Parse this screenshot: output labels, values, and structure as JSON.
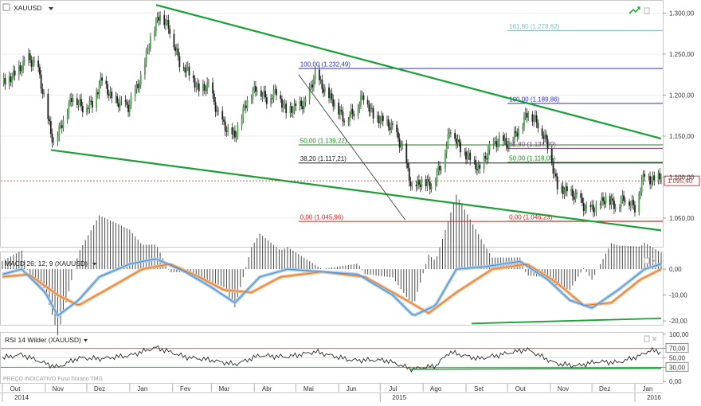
{
  "chart_data": [
    {
      "type": "candlestick",
      "title": "XAUUSD",
      "symbol": "XAUUSD",
      "ylim": [
        1.015,
        1.315
      ],
      "y_ticks": [
        "1.300,00",
        "1.250,00",
        "1.200,00",
        "1.150,00",
        "1.100,00",
        "1.050,00"
      ],
      "y_tick_values": [
        1.3,
        1.25,
        1.2,
        1.15,
        1.1,
        1.05
      ],
      "x_range": [
        "2014-10-01",
        "2016-01-20"
      ],
      "month_ticks": [
        {
          "date": "2014-10-01",
          "label": "Out"
        },
        {
          "date": "2014-11-01",
          "label": "Nov"
        },
        {
          "date": "2014-12-01",
          "label": "Dez"
        },
        {
          "date": "2015-01-01",
          "label": "Jan"
        },
        {
          "date": "2015-02-01",
          "label": "Fev"
        },
        {
          "date": "2015-03-01",
          "label": "Mar"
        },
        {
          "date": "2015-04-01",
          "label": "Abr"
        },
        {
          "date": "2015-05-01",
          "label": "Mai"
        },
        {
          "date": "2015-06-01",
          "label": "Jun"
        },
        {
          "date": "2015-07-01",
          "label": "Jul"
        },
        {
          "date": "2015-08-01",
          "label": "Ago"
        },
        {
          "date": "2015-09-01",
          "label": "Set"
        },
        {
          "date": "2015-10-01",
          "label": "Out"
        },
        {
          "date": "2015-11-01",
          "label": "Nov"
        },
        {
          "date": "2015-12-01",
          "label": "Dez"
        },
        {
          "date": "2016-01-01",
          "label": "Jan"
        }
      ],
      "year_labels": [
        {
          "date": "2014-10-01",
          "label": "2014"
        },
        {
          "date": "2015-07-01",
          "label": "2015"
        },
        {
          "date": "2016-01-01",
          "label": "2016"
        }
      ],
      "price_path": [
        [
          "2014-10-01",
          1.215
        ],
        [
          "2014-10-10",
          1.225
        ],
        [
          "2014-10-20",
          1.245
        ],
        [
          "2014-10-27",
          1.23
        ],
        [
          "2014-11-03",
          1.17
        ],
        [
          "2014-11-07",
          1.14
        ],
        [
          "2014-11-14",
          1.17
        ],
        [
          "2014-11-21",
          1.2
        ],
        [
          "2014-11-28",
          1.185
        ],
        [
          "2014-12-05",
          1.19
        ],
        [
          "2014-12-12",
          1.22
        ],
        [
          "2014-12-19",
          1.195
        ],
        [
          "2014-12-31",
          1.185
        ],
        [
          "2015-01-09",
          1.22
        ],
        [
          "2015-01-16",
          1.27
        ],
        [
          "2015-01-23",
          1.3
        ],
        [
          "2015-01-30",
          1.28
        ],
        [
          "2015-02-06",
          1.24
        ],
        [
          "2015-02-13",
          1.228
        ],
        [
          "2015-02-20",
          1.205
        ],
        [
          "2015-02-27",
          1.212
        ],
        [
          "2015-03-06",
          1.175
        ],
        [
          "2015-03-13",
          1.155
        ],
        [
          "2015-03-18",
          1.15
        ],
        [
          "2015-03-27",
          1.195
        ],
        [
          "2015-04-03",
          1.21
        ],
        [
          "2015-04-10",
          1.195
        ],
        [
          "2015-04-17",
          1.205
        ],
        [
          "2015-04-24",
          1.18
        ],
        [
          "2015-05-01",
          1.185
        ],
        [
          "2015-05-08",
          1.19
        ],
        [
          "2015-05-15",
          1.225
        ],
        [
          "2015-05-22",
          1.205
        ],
        [
          "2015-05-29",
          1.19
        ],
        [
          "2015-06-05",
          1.17
        ],
        [
          "2015-06-12",
          1.18
        ],
        [
          "2015-06-19",
          1.2
        ],
        [
          "2015-06-26",
          1.175
        ],
        [
          "2015-07-03",
          1.168
        ],
        [
          "2015-07-10",
          1.16
        ],
        [
          "2015-07-17",
          1.135
        ],
        [
          "2015-07-24",
          1.085
        ],
        [
          "2015-07-31",
          1.095
        ],
        [
          "2015-08-07",
          1.09
        ],
        [
          "2015-08-14",
          1.115
        ],
        [
          "2015-08-21",
          1.16
        ],
        [
          "2015-08-28",
          1.135
        ],
        [
          "2015-09-04",
          1.122
        ],
        [
          "2015-09-11",
          1.108
        ],
        [
          "2015-09-18",
          1.135
        ],
        [
          "2015-09-25",
          1.145
        ],
        [
          "2015-10-02",
          1.14
        ],
        [
          "2015-10-09",
          1.158
        ],
        [
          "2015-10-16",
          1.18
        ],
        [
          "2015-10-23",
          1.165
        ],
        [
          "2015-10-30",
          1.14
        ],
        [
          "2015-11-06",
          1.088
        ],
        [
          "2015-11-13",
          1.082
        ],
        [
          "2015-11-20",
          1.076
        ],
        [
          "2015-11-27",
          1.06
        ],
        [
          "2015-12-04",
          1.062
        ],
        [
          "2015-12-11",
          1.075
        ],
        [
          "2015-12-18",
          1.065
        ],
        [
          "2015-12-25",
          1.075
        ],
        [
          "2016-01-01",
          1.063
        ],
        [
          "2016-01-08",
          1.105
        ],
        [
          "2016-01-13",
          1.095
        ],
        [
          "2016-01-20",
          1.102
        ]
      ],
      "trend_lines": [
        {
          "start": [
            "2015-01-20",
            1.31
          ],
          "end": [
            "2016-01-20",
            1.147
          ],
          "color": "#1aa035"
        },
        {
          "start": [
            "2014-11-05",
            1.133
          ],
          "end": [
            "2016-01-20",
            1.035
          ],
          "color": "#1aa035"
        }
      ],
      "diagonal_line": {
        "start": [
          "2015-05-03",
          1.225
        ],
        "end": [
          "2015-07-19",
          1.048
        ],
        "color": "#404040"
      },
      "fib_levels": [
        {
          "label": "161,80 (1.278,62)",
          "value": 1.27862,
          "from": "2015-10-01",
          "color": "#7fbfbf"
        },
        {
          "label": "100,00 (1.232,49)",
          "value": 1.23249,
          "from": "2015-05-03",
          "color": "#2b2bd6"
        },
        {
          "label": "100,00 (1.189,86)",
          "value": 1.18986,
          "from": "2015-10-01",
          "color": "#2b2bd6"
        },
        {
          "label": "61,80 (1.134,99)",
          "value": 1.13499,
          "from": "2015-10-01",
          "color": "#8b3a8b"
        },
        {
          "label": "50,00 (1.139,22)",
          "value": 1.13922,
          "from": "2015-05-03",
          "color": "#1a8a1a"
        },
        {
          "label": "38,20 (1.117,21)",
          "value": 1.11721,
          "from": "2015-05-03",
          "color": "#1a1a1a"
        },
        {
          "label": "50,00 (1.118,05)",
          "value": 1.11805,
          "from": "2015-10-01",
          "color": "#1a8a1a"
        },
        {
          "label": "0,00 (1.045,96)",
          "value": 1.04596,
          "from": "2015-05-03",
          "color": "#d62020"
        },
        {
          "label": "0,00 (1.046,23)",
          "value": 1.04623,
          "from": "2015-10-01",
          "color": "#d62020"
        }
      ],
      "last_price": {
        "value": 1.0954,
        "label": "1.095,40",
        "color": "#e03030"
      }
    },
    {
      "type": "macd",
      "title": "MACD 26; 12; 9 (XAUUSD)",
      "ylim": [
        -21.5,
        6.5
      ],
      "y_ticks": [
        "0,00",
        "-10,00",
        "-20,00"
      ],
      "y_tick_values": [
        0,
        -10,
        -20
      ],
      "macd_path": [
        [
          "2014-10-01",
          -2
        ],
        [
          "2014-10-15",
          0
        ],
        [
          "2014-11-01",
          -9
        ],
        [
          "2014-11-10",
          -18
        ],
        [
          "2014-11-25",
          -12
        ],
        [
          "2014-12-10",
          -3
        ],
        [
          "2015-01-01",
          2
        ],
        [
          "2015-01-20",
          4
        ],
        [
          "2015-02-10",
          -1
        ],
        [
          "2015-03-01",
          -7
        ],
        [
          "2015-03-18",
          -13
        ],
        [
          "2015-04-05",
          -3
        ],
        [
          "2015-04-25",
          0
        ],
        [
          "2015-05-20",
          -1
        ],
        [
          "2015-06-15",
          -2
        ],
        [
          "2015-07-10",
          -10
        ],
        [
          "2015-07-25",
          -18
        ],
        [
          "2015-08-10",
          -14
        ],
        [
          "2015-08-25",
          0
        ],
        [
          "2015-09-15",
          1
        ],
        [
          "2015-10-10",
          3
        ],
        [
          "2015-10-30",
          -4
        ],
        [
          "2015-11-15",
          -12
        ],
        [
          "2015-12-01",
          -15
        ],
        [
          "2015-12-20",
          -8
        ],
        [
          "2016-01-08",
          0
        ],
        [
          "2016-01-20",
          2
        ]
      ],
      "signal_path": [
        [
          "2014-10-01",
          -3
        ],
        [
          "2014-10-20",
          -2
        ],
        [
          "2014-11-10",
          -10
        ],
        [
          "2014-11-25",
          -14
        ],
        [
          "2014-12-15",
          -8
        ],
        [
          "2015-01-10",
          0
        ],
        [
          "2015-01-30",
          2
        ],
        [
          "2015-02-20",
          -3
        ],
        [
          "2015-03-10",
          -8
        ],
        [
          "2015-03-30",
          -9
        ],
        [
          "2015-04-20",
          -3
        ],
        [
          "2015-05-20",
          -1
        ],
        [
          "2015-06-20",
          -3
        ],
        [
          "2015-07-20",
          -12
        ],
        [
          "2015-08-05",
          -17
        ],
        [
          "2015-08-25",
          -9
        ],
        [
          "2015-09-20",
          0
        ],
        [
          "2015-10-15",
          2
        ],
        [
          "2015-11-05",
          -5
        ],
        [
          "2015-11-25",
          -14
        ],
        [
          "2015-12-15",
          -13
        ],
        [
          "2016-01-05",
          -4
        ],
        [
          "2016-01-20",
          0
        ]
      ],
      "divergence_line": {
        "start": [
          "2015-09-05",
          -21
        ],
        "end": [
          "2016-01-20",
          -19
        ],
        "color": "#1aa035"
      }
    },
    {
      "type": "line",
      "title": "RSI 14 Wilder (XAUUSD)",
      "ylim": [
        -3,
        103
      ],
      "y_ticks": [
        "100,00",
        "70,00",
        "50,00",
        "30,00",
        "0,00"
      ],
      "y_tick_values": [
        100,
        70,
        50,
        30,
        0
      ],
      "overbought": 70,
      "oversold": 30,
      "rsi_path": [
        [
          "2014-10-01",
          50
        ],
        [
          "2014-10-15",
          57
        ],
        [
          "2014-11-01",
          38
        ],
        [
          "2014-11-10",
          30
        ],
        [
          "2014-11-25",
          50
        ],
        [
          "2014-12-10",
          48
        ],
        [
          "2015-01-01",
          55
        ],
        [
          "2015-01-20",
          72
        ],
        [
          "2015-02-10",
          52
        ],
        [
          "2015-03-01",
          45
        ],
        [
          "2015-03-18",
          36
        ],
        [
          "2015-04-05",
          55
        ],
        [
          "2015-04-25",
          52
        ],
        [
          "2015-05-15",
          63
        ],
        [
          "2015-06-10",
          45
        ],
        [
          "2015-07-05",
          45
        ],
        [
          "2015-07-24",
          26
        ],
        [
          "2015-08-10",
          33
        ],
        [
          "2015-08-20",
          62
        ],
        [
          "2015-09-10",
          48
        ],
        [
          "2015-09-25",
          56
        ],
        [
          "2015-10-15",
          68
        ],
        [
          "2015-11-05",
          38
        ],
        [
          "2015-11-20",
          33
        ],
        [
          "2015-12-05",
          42
        ],
        [
          "2015-12-20",
          40
        ],
        [
          "2016-01-05",
          55
        ],
        [
          "2016-01-12",
          66
        ],
        [
          "2016-01-20",
          62
        ]
      ],
      "divergence_line": {
        "start": [
          "2015-07-22",
          26
        ],
        "end": [
          "2016-01-20",
          28
        ],
        "color": "#1aa035"
      }
    }
  ],
  "ui": {
    "symbol_dropdown": "XAUUSD",
    "footer_note": "PREÇO INDICATIVO   Fuso horário TMG"
  }
}
